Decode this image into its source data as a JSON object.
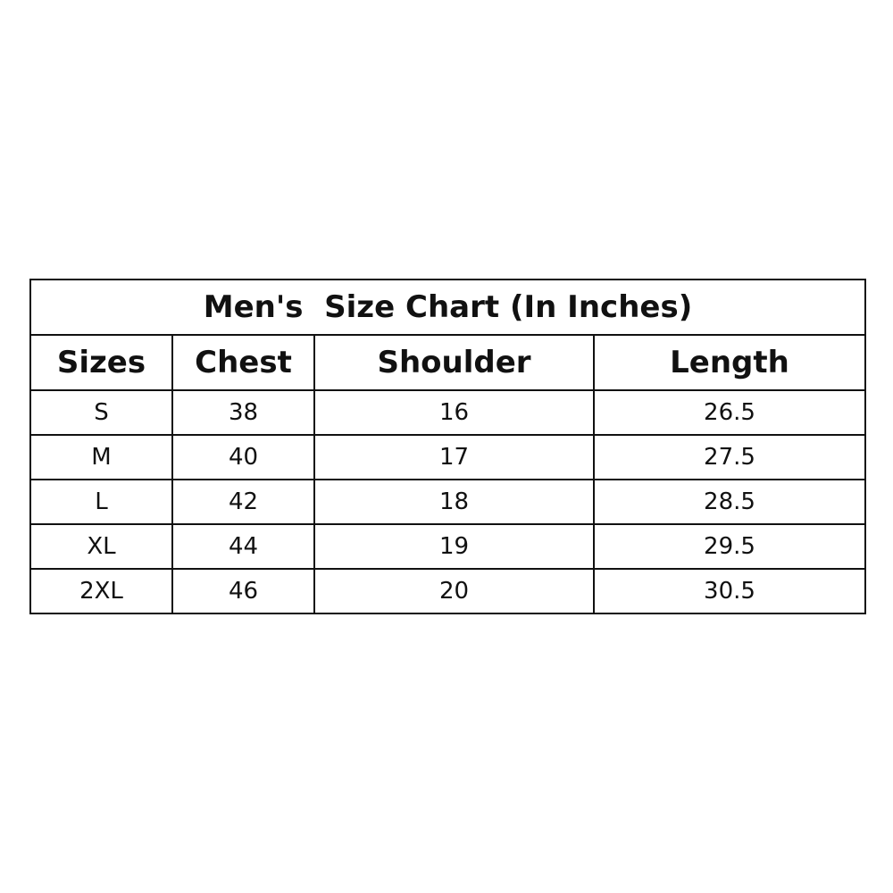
{
  "title": "Men's  Size Chart (In Inches)",
  "headers": [
    "Sizes",
    "Chest",
    "Shoulder",
    "Length"
  ],
  "rows": [
    [
      "S",
      "38",
      "16",
      "26.5"
    ],
    [
      "M",
      "40",
      "17",
      "27.5"
    ],
    [
      "L",
      "42",
      "18",
      "28.5"
    ],
    [
      "XL",
      "44",
      "19",
      "29.5"
    ],
    [
      "2XL",
      "46",
      "20",
      "30.5"
    ]
  ]
}
